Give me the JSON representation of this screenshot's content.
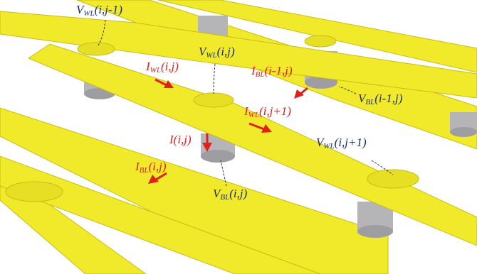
{
  "colors": {
    "strip": "#f1ea2a",
    "strip_edge": "#c9bd12",
    "pillar": "#b5b5b8",
    "voltage_label": "#1a2f5a",
    "current_label": "#e0211b",
    "arrow": "#e0211b",
    "leader": "#333333"
  },
  "labels": {
    "v_wl_ij_minus1": {
      "sym": "V",
      "sub": "WL",
      "arg": "(i,j-1)"
    },
    "v_wl_ij": {
      "sym": "V",
      "sub": "WL",
      "arg": "(i,j)"
    },
    "i_wl_ij": {
      "sym": "I",
      "sub": "WL",
      "arg": "(i,j)"
    },
    "i_bl_iminus1_j": {
      "sym": "I",
      "sub": "BL",
      "arg": "(i-1,j)"
    },
    "v_bl_iminus1_j": {
      "sym": "V",
      "sub": "BL",
      "arg": "(i-1,j)"
    },
    "i_wl_ij_plus1": {
      "sym": "I",
      "sub": "WL",
      "arg": "(i,j+1)"
    },
    "i_ij": {
      "text": "I(i,j)"
    },
    "v_wl_ij_plus1": {
      "sym": "V",
      "sub": "WL",
      "arg": "(i,j+1)"
    },
    "i_bl_ij": {
      "sym": "I",
      "sub": "BL",
      "arg": "(i,j)"
    },
    "v_bl_ij": {
      "sym": "V",
      "sub": "BL",
      "arg": "(i,j)"
    }
  }
}
